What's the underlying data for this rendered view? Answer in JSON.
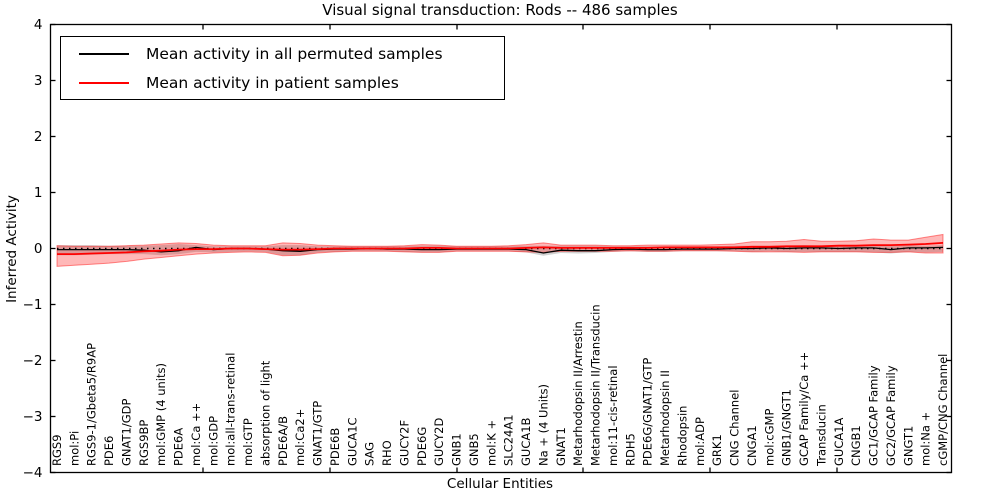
{
  "figure": {
    "title": "Visual signal transduction: Rods -- 486 samples",
    "xlabel": "Cellular Entities",
    "ylabel": "Inferred Activity"
  },
  "legend": {
    "items": [
      {
        "label": "Mean activity in all permuted samples",
        "color": "#000000"
      },
      {
        "label": "Mean activity in patient samples",
        "color": "#ff0000"
      }
    ]
  },
  "colors": {
    "permuted_line": "#000000",
    "patient_line": "#ff0000",
    "permuted_band": "rgba(0,0,0,0.18)",
    "patient_band": "rgba(255,0,0,0.28)",
    "patient_band_edge": "rgba(255,0,0,0.45)",
    "axis": "#000000",
    "background": "#ffffff"
  },
  "chart_data": {
    "type": "line",
    "title": "Visual signal transduction: Rods -- 486 samples",
    "xlabel": "Cellular Entities",
    "ylabel": "Inferred Activity",
    "ylim": [
      -4,
      4
    ],
    "yticks": [
      4,
      3,
      2,
      1,
      0,
      -1,
      -2,
      -3,
      -4
    ],
    "grid": false,
    "legend_position": "upper left",
    "zero_line": {
      "y": 0,
      "style": "dotted",
      "color": "#000000"
    },
    "categories": [
      "RGS9",
      "mol:Pi",
      "RGS9-1/Gbeta5/R9AP",
      "PDE6",
      "GNAT1/GDP",
      "RGS9BP",
      "mol:GMP (4 units)",
      "PDE6A",
      "mol:Ca ++",
      "mol:GDP",
      "mol:all-trans-retinal",
      "mol:GTP",
      "absorption of light",
      "PDE6A/B",
      "mol:Ca2+",
      "GNAT1/GTP",
      "PDE6B",
      "GUCA1C",
      "SAG",
      "RHO",
      "GUCY2F",
      "PDE6G",
      "GUCY2D",
      "GNB1",
      "GNB5",
      "mol:K +",
      "SLC24A1",
      "GUCA1B",
      "Na + (4 Units)",
      "GNAT1",
      "Metarhodopsin II/Arrestin",
      "Metarhodopsin II/Transducin",
      "mol:11-cis-retinal",
      "RDH5",
      "PDE6G/GNAT1/GTP",
      "Metarhodopsin II",
      "Rhodopsin",
      "mol:ADP",
      "GRK1",
      "CNG Channel",
      "CNGA1",
      "mol:cGMP",
      "GNB1/GNGT1",
      "GCAP Family/Ca ++",
      "Transducin",
      "GUCA1A",
      "CNGB1",
      "GC1/GCAP Family",
      "GC2/GCAP Family",
      "GNGT1",
      "mol:Na +",
      "cGMP/CNG Channel"
    ],
    "series": [
      {
        "name": "Mean activity in all permuted samples",
        "color": "#000000",
        "values": [
          -0.02,
          -0.02,
          -0.02,
          -0.02,
          -0.02,
          -0.03,
          -0.06,
          -0.04,
          0.02,
          -0.02,
          0,
          0,
          -0.01,
          -0.04,
          -0.05,
          -0.02,
          -0.01,
          -0.01,
          0,
          -0.01,
          -0.01,
          -0.02,
          -0.02,
          -0.01,
          -0.01,
          -0.01,
          -0.01,
          -0.02,
          -0.08,
          -0.03,
          -0.04,
          -0.04,
          -0.02,
          -0.01,
          -0.02,
          -0.02,
          -0.01,
          -0.01,
          -0.01,
          0,
          0,
          0.01,
          0,
          0.01,
          0.01,
          0,
          0.01,
          0.01,
          -0.02,
          0.01,
          0.01,
          0.02
        ]
      },
      {
        "name": "Mean activity in patient samples",
        "color": "#ff0000",
        "values": [
          -0.1,
          -0.1,
          -0.09,
          -0.08,
          -0.07,
          -0.05,
          -0.04,
          -0.02,
          -0.01,
          -0.01,
          0,
          0,
          -0.01,
          -0.02,
          -0.02,
          -0.01,
          0,
          0,
          0,
          0,
          0,
          0.01,
          0.01,
          0,
          0,
          0,
          0,
          0.01,
          0.02,
          0.01,
          0.01,
          0.01,
          0.01,
          0.01,
          0.01,
          0.02,
          0.02,
          0.02,
          0.02,
          0.02,
          0.03,
          0.03,
          0.04,
          0.04,
          0.04,
          0.05,
          0.05,
          0.06,
          0.06,
          0.07,
          0.08,
          0.1
        ]
      }
    ],
    "bands": [
      {
        "name": "permuted-std-band",
        "color": "#000000",
        "alpha": 0.18,
        "upper": [
          0.06,
          0.06,
          0.06,
          0.05,
          0.05,
          0.05,
          0.06,
          0.08,
          0.06,
          0.04,
          0.04,
          0.04,
          0.04,
          0.06,
          0.06,
          0.04,
          0.04,
          0.04,
          0.04,
          0.04,
          0.04,
          0.05,
          0.05,
          0.04,
          0.04,
          0.04,
          0.04,
          0.05,
          0.05,
          0.05,
          0.05,
          0.05,
          0.04,
          0.04,
          0.04,
          0.04,
          0.04,
          0.04,
          0.04,
          0.05,
          0.05,
          0.05,
          0.05,
          0.06,
          0.05,
          0.05,
          0.05,
          0.06,
          0.05,
          0.06,
          0.05,
          0.06
        ],
        "lower": [
          -0.12,
          -0.12,
          -0.11,
          -0.1,
          -0.1,
          -0.1,
          -0.12,
          -0.1,
          -0.06,
          -0.07,
          -0.06,
          -0.05,
          -0.06,
          -0.12,
          -0.12,
          -0.07,
          -0.06,
          -0.05,
          -0.05,
          -0.05,
          -0.06,
          -0.07,
          -0.07,
          -0.05,
          -0.05,
          -0.05,
          -0.05,
          -0.07,
          -0.13,
          -0.08,
          -0.09,
          -0.08,
          -0.06,
          -0.05,
          -0.06,
          -0.06,
          -0.05,
          -0.05,
          -0.05,
          -0.05,
          -0.06,
          -0.05,
          -0.06,
          -0.06,
          -0.06,
          -0.06,
          -0.06,
          -0.07,
          -0.09,
          -0.06,
          -0.07,
          -0.06
        ]
      },
      {
        "name": "patient-std-band",
        "color": "#ff0000",
        "alpha": 0.28,
        "upper": [
          0.05,
          0.04,
          0.04,
          0.04,
          0.05,
          0.06,
          0.08,
          0.1,
          0.09,
          0.06,
          0.05,
          0.05,
          0.05,
          0.1,
          0.09,
          0.06,
          0.05,
          0.04,
          0.04,
          0.04,
          0.05,
          0.07,
          0.06,
          0.04,
          0.04,
          0.04,
          0.05,
          0.07,
          0.1,
          0.06,
          0.06,
          0.06,
          0.05,
          0.05,
          0.06,
          0.06,
          0.06,
          0.06,
          0.07,
          0.08,
          0.12,
          0.12,
          0.13,
          0.16,
          0.13,
          0.13,
          0.14,
          0.17,
          0.15,
          0.15,
          0.2,
          0.25
        ],
        "lower": [
          -0.32,
          -0.3,
          -0.28,
          -0.26,
          -0.23,
          -0.19,
          -0.16,
          -0.13,
          -0.1,
          -0.08,
          -0.07,
          -0.06,
          -0.07,
          -0.13,
          -0.12,
          -0.08,
          -0.06,
          -0.05,
          -0.05,
          -0.05,
          -0.06,
          -0.07,
          -0.07,
          -0.05,
          -0.05,
          -0.05,
          -0.05,
          -0.06,
          -0.07,
          -0.05,
          -0.05,
          -0.05,
          -0.05,
          -0.04,
          -0.05,
          -0.05,
          -0.04,
          -0.04,
          -0.04,
          -0.05,
          -0.06,
          -0.06,
          -0.06,
          -0.07,
          -0.06,
          -0.06,
          -0.06,
          -0.07,
          -0.07,
          -0.06,
          -0.08,
          -0.08
        ]
      }
    ]
  }
}
